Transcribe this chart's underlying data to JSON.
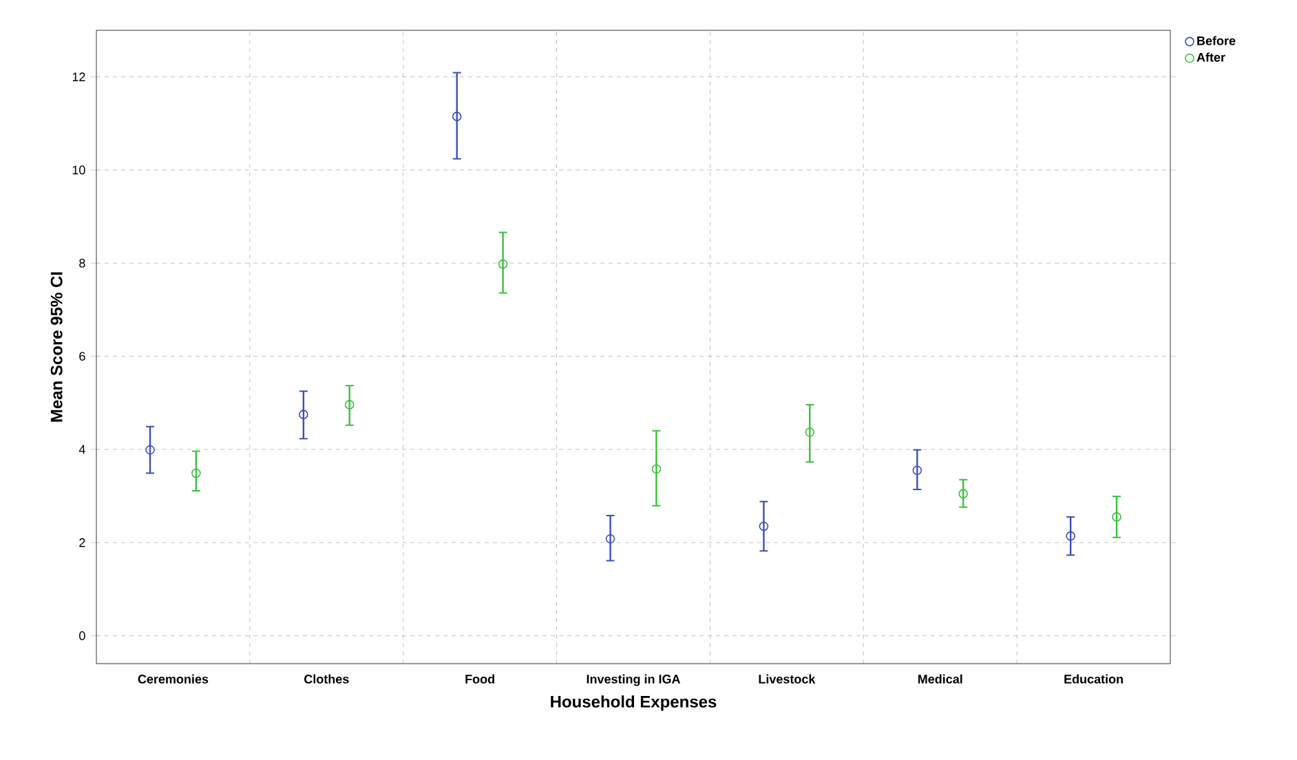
{
  "chart_data": {
    "type": "scatter",
    "xlabel": "Household Expenses",
    "ylabel": "Mean Score 95% CI",
    "categories": [
      "Ceremonies",
      "Clothes",
      "Food",
      "Investing in IGA",
      "Livestock",
      "Medical",
      "Education"
    ],
    "series": [
      {
        "name": "Before",
        "color": "#3a4fb8",
        "values": [
          3.99,
          4.75,
          11.15,
          2.08,
          2.35,
          3.55,
          2.14
        ],
        "errors": [
          [
            3.49,
            4.49
          ],
          [
            4.23,
            5.25
          ],
          [
            10.24,
            12.09
          ],
          [
            1.61,
            2.58
          ],
          [
            1.82,
            2.88
          ],
          [
            3.14,
            3.99
          ],
          [
            1.73,
            2.55
          ]
        ]
      },
      {
        "name": "After",
        "color": "#3cbf3c",
        "values": [
          3.49,
          4.96,
          7.98,
          3.58,
          4.37,
          3.05,
          2.55
        ],
        "errors": [
          [
            3.11,
            3.96
          ],
          [
            4.52,
            5.37
          ],
          [
            7.36,
            8.66
          ],
          [
            2.79,
            4.4
          ],
          [
            3.73,
            4.96
          ],
          [
            2.76,
            3.35
          ],
          [
            2.11,
            2.99
          ]
        ]
      }
    ],
    "ylim": [
      -0.6,
      13
    ],
    "yticks": [
      0,
      2,
      4,
      6,
      8,
      10,
      12
    ],
    "grid": true,
    "legend": "top right",
    "marker": "circle"
  }
}
